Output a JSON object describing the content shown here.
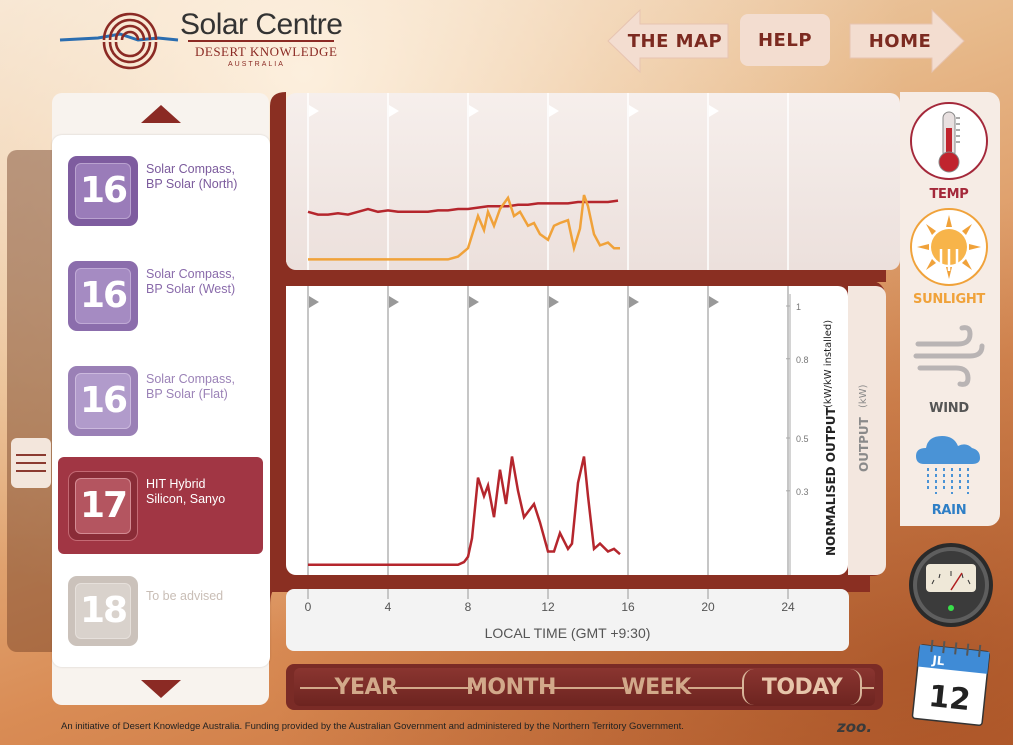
{
  "logo": {
    "title": "Solar Centre",
    "subtitle": "Desert Knowledge",
    "country": "AUSTRALIA"
  },
  "nav": {
    "map_label": "THE MAP",
    "help_label": "HELP",
    "home_label": "HOME"
  },
  "stations": [
    {
      "number": "16",
      "label_line1": "Solar Compass,",
      "label_line2": "BP Solar (North)"
    },
    {
      "number": "16",
      "label_line1": "Solar Compass,",
      "label_line2": "BP Solar (West)"
    },
    {
      "number": "16",
      "label_line1": "Solar Compass,",
      "label_line2": "BP Solar (Flat)"
    },
    {
      "number": "17",
      "label_line1": "HIT Hybrid",
      "label_line2": "Silicon, Sanyo"
    },
    {
      "number": "18",
      "label_line1": "To be advised",
      "label_line2": ""
    }
  ],
  "chart_data": [
    {
      "type": "line",
      "name": "weather-overlay",
      "x_unit": "hours local time",
      "series": [
        {
          "color": "#b5262d",
          "x": [
            0,
            0.5,
            1,
            1.5,
            2,
            2.5,
            3,
            3.5,
            4,
            4.5,
            5,
            5.5,
            6,
            6.5,
            7,
            7.5,
            8,
            8.5,
            9,
            9.5,
            10,
            10.5,
            11,
            11.5,
            12,
            12.5,
            13,
            13.5,
            14,
            14.5,
            15,
            15.5
          ],
          "y": [
            0.38,
            0.36,
            0.36,
            0.37,
            0.36,
            0.38,
            0.4,
            0.38,
            0.39,
            0.38,
            0.38,
            0.38,
            0.38,
            0.39,
            0.39,
            0.4,
            0.4,
            0.41,
            0.42,
            0.42,
            0.42,
            0.43,
            0.43,
            0.44,
            0.44,
            0.44,
            0.44,
            0.45,
            0.45,
            0.45,
            0.45,
            0.46
          ]
        },
        {
          "color": "#f0a23a",
          "x": [
            0,
            1,
            2,
            3,
            4,
            5,
            6,
            7,
            7.5,
            8,
            8.5,
            8.8,
            9,
            9.3,
            9.6,
            10,
            10.3,
            10.6,
            11,
            11.3,
            11.6,
            12,
            12.3,
            12.6,
            13,
            13.3,
            13.6,
            13.8,
            14,
            14.3,
            14.6,
            15,
            15.3,
            15.6
          ],
          "y": [
            0.04,
            0.04,
            0.04,
            0.04,
            0.04,
            0.04,
            0.04,
            0.04,
            0.06,
            0.12,
            0.35,
            0.25,
            0.38,
            0.28,
            0.4,
            0.48,
            0.35,
            0.38,
            0.28,
            0.3,
            0.22,
            0.18,
            0.28,
            0.3,
            0.32,
            0.12,
            0.26,
            0.5,
            0.42,
            0.22,
            0.14,
            0.16,
            0.12,
            0.12
          ]
        }
      ]
    },
    {
      "type": "line",
      "name": "normalised-output",
      "x_unit": "hours local time",
      "xlabel": "LOCAL TIME (GMT +9:30)",
      "ylabel": "NORMALISED OUTPUT",
      "ylabel_unit": "(kW/kW installed)",
      "y2label": "OUTPUT",
      "y2label_unit": "(kW)",
      "x_ticks": [
        0,
        4,
        8,
        12,
        16,
        20,
        24
      ],
      "y_ticks": [
        0.3,
        0.5,
        0.8,
        1
      ],
      "xlim": [
        0,
        24
      ],
      "ylim": [
        0,
        1
      ],
      "series": [
        {
          "color": "#b5262d",
          "x": [
            0,
            1,
            2,
            3,
            4,
            5,
            6,
            7,
            7.5,
            7.8,
            8,
            8.2,
            8.5,
            8.8,
            9,
            9.3,
            9.6,
            9.9,
            10.2,
            10.5,
            10.8,
            11,
            11.3,
            11.6,
            12,
            12.3,
            12.6,
            13,
            13.2,
            13.5,
            13.8,
            14,
            14.3,
            14.6,
            15,
            15.3,
            15.6
          ],
          "y": [
            0.02,
            0.02,
            0.02,
            0.02,
            0.02,
            0.02,
            0.02,
            0.02,
            0.02,
            0.03,
            0.05,
            0.12,
            0.35,
            0.28,
            0.32,
            0.2,
            0.38,
            0.25,
            0.43,
            0.3,
            0.2,
            0.22,
            0.25,
            0.18,
            0.07,
            0.07,
            0.14,
            0.08,
            0.1,
            0.33,
            0.43,
            0.28,
            0.08,
            0.1,
            0.07,
            0.08,
            0.06
          ]
        }
      ]
    }
  ],
  "weather": {
    "temp_label": "TEMP",
    "sunlight_label": "SUNLIGHT",
    "wind_label": "WIND",
    "rain_label": "RAIN"
  },
  "calendar": {
    "month": "JL",
    "day": "12"
  },
  "periods": {
    "year": "YEAR",
    "month": "MONTH",
    "week": "WEEK",
    "today": "TODAY"
  },
  "footer": {
    "text": "An initiative of Desert Knowledge Australia. Funding provided by the Australian Government and administered by the Northern Territory Government.",
    "credit": "ZOO."
  },
  "colors": {
    "accent": "#a13644",
    "output_line": "#b5262d",
    "sunlight_line": "#f0a23a",
    "station_16": "#8a6ba8",
    "station_18": "#cfc6bf"
  }
}
